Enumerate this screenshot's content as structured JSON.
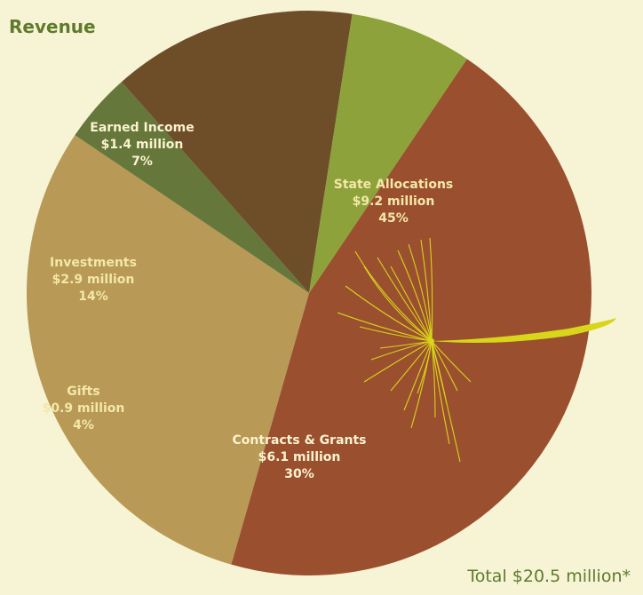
{
  "chart_data": {
    "type": "pie",
    "title": "Revenue",
    "total_label": "Total  $20.5 million*",
    "slices": [
      {
        "name": "State Allocations",
        "amount": "$9.2 million",
        "percent_label": "45%",
        "value": 45,
        "color": "#9a4f2f",
        "label_color": "#f3e8a8"
      },
      {
        "name": "Contracts & Grants",
        "amount": "$6.1 million",
        "percent_label": "30%",
        "value": 30,
        "color": "#b89955",
        "label_color": "#fbf3cf"
      },
      {
        "name": "Gifts",
        "amount": "$0.9 million",
        "percent_label": "4%",
        "value": 4,
        "color": "#65773a",
        "label_color": "#f3e8a8"
      },
      {
        "name": "Investments",
        "amount": "$2.9 million",
        "percent_label": "14%",
        "value": 14,
        "color": "#6e4e28",
        "label_color": "#f3e8a8"
      },
      {
        "name": "Earned Income",
        "amount": "$1.4 million",
        "percent_label": "7%",
        "value": 7,
        "color": "#8da23a",
        "label_color": "#fbf3cf"
      }
    ],
    "decoration": "dandelion-seed"
  }
}
